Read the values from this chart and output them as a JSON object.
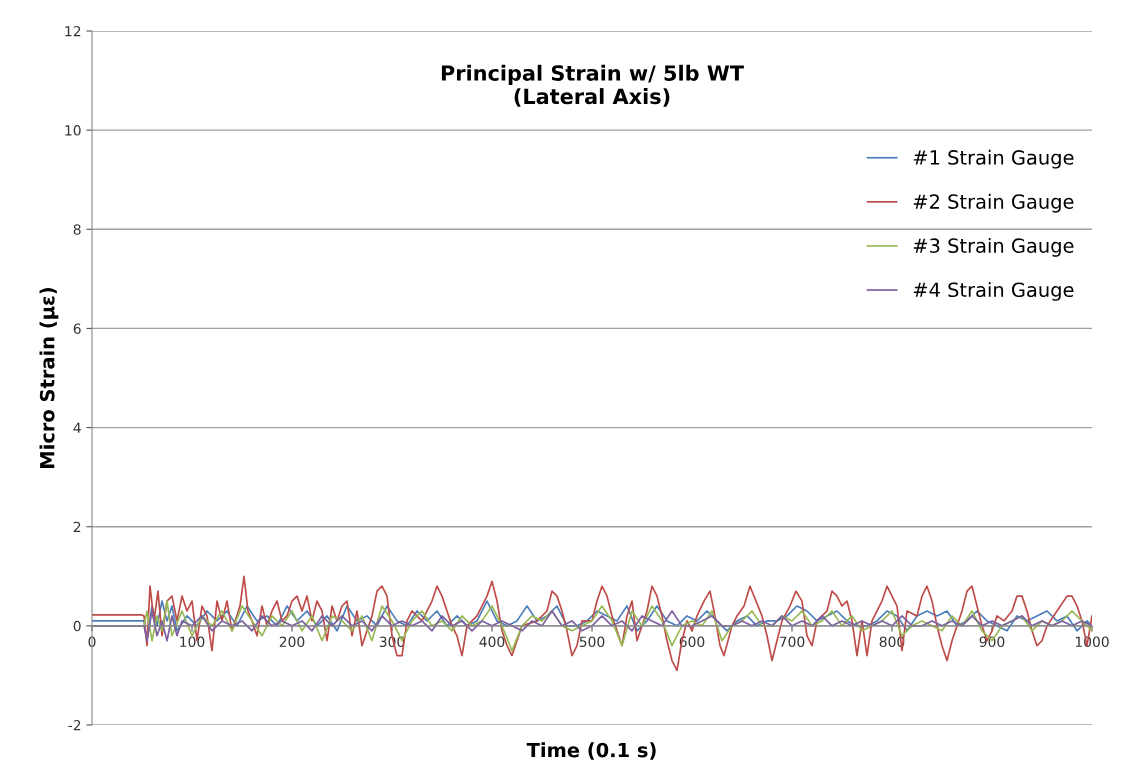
{
  "chart_data": {
    "type": "line",
    "title": "Principal Strain w/ 5lb WT\n(Lateral Axis)",
    "xlabel": "Time (0.1 s)",
    "ylabel": "Micro Strain (με)",
    "xlim": [
      0,
      1000
    ],
    "xticks": [
      0,
      100,
      200,
      300,
      400,
      500,
      600,
      700,
      800,
      900,
      1000
    ],
    "ylim": [
      -2,
      12
    ],
    "yticks": [
      -2,
      0,
      2,
      4,
      6,
      8,
      10,
      12
    ],
    "grid": "y",
    "legend": "right",
    "marker": "none",
    "line_style": "solid",
    "series": [
      {
        "name": "#1 Strain Gauge",
        "color": "#4a7ebb",
        "x": [
          0,
          52,
          55,
          60,
          65,
          70,
          75,
          80,
          85,
          95,
          105,
          115,
          125,
          135,
          145,
          155,
          165,
          175,
          185,
          195,
          205,
          215,
          225,
          235,
          245,
          255,
          265,
          275,
          285,
          295,
          305,
          315,
          325,
          335,
          345,
          355,
          365,
          375,
          385,
          395,
          405,
          415,
          425,
          435,
          445,
          455,
          465,
          475,
          485,
          495,
          505,
          515,
          525,
          535,
          545,
          555,
          565,
          575,
          585,
          595,
          605,
          615,
          625,
          635,
          645,
          655,
          665,
          675,
          685,
          695,
          705,
          715,
          725,
          735,
          745,
          755,
          765,
          775,
          785,
          795,
          805,
          815,
          825,
          835,
          845,
          855,
          865,
          875,
          885,
          895,
          905,
          915,
          925,
          935,
          945,
          955,
          965,
          975,
          985,
          995,
          1000
        ],
        "values": [
          0.1,
          0.1,
          -0.3,
          0.4,
          0.0,
          0.5,
          0.1,
          0.4,
          -0.1,
          0.2,
          0.0,
          0.3,
          0.1,
          0.3,
          0.0,
          0.4,
          0.1,
          0.2,
          0.0,
          0.4,
          0.1,
          0.3,
          0.0,
          0.2,
          -0.1,
          0.4,
          0.1,
          0.2,
          0.0,
          0.4,
          0.1,
          0.0,
          0.3,
          0.1,
          0.3,
          0.0,
          0.2,
          0.0,
          0.1,
          0.5,
          0.1,
          0.0,
          0.1,
          0.4,
          0.1,
          0.2,
          0.4,
          0.0,
          0.0,
          0.1,
          0.3,
          0.2,
          0.1,
          0.4,
          -0.1,
          0.1,
          0.4,
          0.1,
          0.0,
          0.2,
          0.1,
          0.3,
          0.1,
          -0.1,
          0.1,
          0.2,
          0.0,
          0.1,
          0.1,
          0.2,
          0.4,
          0.3,
          0.1,
          0.2,
          0.3,
          0.1,
          0.0,
          0.0,
          0.1,
          0.3,
          0.2,
          -0.1,
          0.2,
          0.3,
          0.2,
          0.3,
          0.0,
          0.1,
          0.3,
          0.1,
          0.0,
          -0.1,
          0.2,
          0.1,
          0.2,
          0.3,
          0.1,
          0.2,
          -0.1,
          0.1,
          0.0
        ]
      },
      {
        "name": "#2 Strain Gauge",
        "color": "#be4b48",
        "x": [
          0,
          50,
          52,
          55,
          58,
          62,
          66,
          70,
          75,
          80,
          85,
          90,
          95,
          100,
          105,
          110,
          115,
          120,
          125,
          130,
          135,
          140,
          148,
          152,
          156,
          160,
          165,
          170,
          175,
          180,
          185,
          190,
          195,
          200,
          205,
          210,
          215,
          220,
          225,
          230,
          235,
          240,
          245,
          250,
          255,
          260,
          265,
          270,
          275,
          280,
          285,
          290,
          295,
          300,
          305,
          310,
          315,
          320,
          330,
          340,
          345,
          350,
          355,
          360,
          365,
          370,
          375,
          385,
          395,
          400,
          405,
          410,
          415,
          420,
          425,
          430,
          445,
          455,
          460,
          465,
          470,
          475,
          480,
          485,
          490,
          500,
          505,
          510,
          515,
          520,
          525,
          530,
          535,
          540,
          545,
          550,
          555,
          560,
          565,
          570,
          575,
          580,
          585,
          590,
          595,
          600,
          605,
          612,
          618,
          622,
          628,
          632,
          640,
          645,
          652,
          658,
          664,
          670,
          675,
          680,
          685,
          690,
          698,
          704,
          710,
          715,
          720,
          725,
          735,
          740,
          745,
          750,
          755,
          760,
          765,
          770,
          775,
          780,
          790,
          795,
          800,
          805,
          810,
          815,
          825,
          830,
          835,
          840,
          845,
          850,
          855,
          860,
          870,
          875,
          880,
          885,
          890,
          895,
          900,
          905,
          912,
          920,
          925,
          930,
          935,
          940,
          945,
          950,
          955,
          965,
          975,
          980,
          985,
          990,
          995,
          1000
        ],
        "values": [
          0.22,
          0.22,
          0.2,
          -0.4,
          0.8,
          0.1,
          0.7,
          -0.2,
          0.5,
          0.6,
          0.1,
          0.6,
          0.3,
          0.5,
          -0.3,
          0.4,
          0.2,
          -0.5,
          0.5,
          0.1,
          0.5,
          -0.1,
          0.4,
          1.0,
          0.3,
          0.1,
          -0.2,
          0.4,
          0.0,
          0.3,
          0.5,
          0.1,
          0.2,
          0.5,
          0.6,
          0.3,
          0.6,
          0.1,
          0.5,
          0.3,
          -0.3,
          0.4,
          0.1,
          0.4,
          0.5,
          -0.2,
          0.3,
          -0.4,
          -0.1,
          0.2,
          0.7,
          0.8,
          0.6,
          -0.2,
          -0.6,
          -0.6,
          0.1,
          0.3,
          0.1,
          0.5,
          0.8,
          0.6,
          0.3,
          0.0,
          -0.2,
          -0.6,
          0.0,
          0.2,
          0.6,
          0.9,
          0.5,
          -0.1,
          -0.4,
          -0.6,
          -0.3,
          0.0,
          0.1,
          0.3,
          0.7,
          0.6,
          0.3,
          -0.1,
          -0.6,
          -0.4,
          0.1,
          0.1,
          0.5,
          0.8,
          0.6,
          0.2,
          -0.1,
          -0.4,
          0.2,
          0.5,
          -0.3,
          0.0,
          0.3,
          0.8,
          0.6,
          0.2,
          -0.3,
          -0.7,
          -0.9,
          -0.3,
          0.1,
          -0.1,
          0.2,
          0.5,
          0.7,
          0.3,
          -0.4,
          -0.6,
          0.0,
          0.2,
          0.4,
          0.8,
          0.5,
          0.2,
          -0.2,
          -0.7,
          -0.3,
          0.1,
          0.4,
          0.7,
          0.5,
          -0.2,
          -0.4,
          0.1,
          0.3,
          0.7,
          0.6,
          0.4,
          0.5,
          0.1,
          -0.6,
          0.1,
          -0.6,
          0.1,
          0.5,
          0.8,
          0.6,
          0.4,
          -0.5,
          0.3,
          0.2,
          0.6,
          0.8,
          0.5,
          0.0,
          -0.4,
          -0.7,
          -0.3,
          0.3,
          0.7,
          0.8,
          0.4,
          0.0,
          -0.3,
          -0.1,
          0.2,
          0.1,
          0.3,
          0.6,
          0.6,
          0.3,
          -0.1,
          -0.4,
          -0.3,
          0.0,
          0.3,
          0.6,
          0.6,
          0.4,
          0.1,
          -0.4,
          0.2
        ]
      },
      {
        "name": "#3 Strain Gauge",
        "color": "#98b954",
        "x": [
          0,
          52,
          55,
          60,
          65,
          70,
          75,
          80,
          90,
          100,
          110,
          120,
          130,
          140,
          150,
          160,
          170,
          180,
          190,
          200,
          210,
          220,
          230,
          240,
          250,
          260,
          270,
          280,
          290,
          300,
          310,
          320,
          330,
          340,
          350,
          360,
          370,
          380,
          390,
          400,
          410,
          420,
          430,
          440,
          450,
          460,
          470,
          480,
          490,
          500,
          510,
          520,
          530,
          540,
          550,
          560,
          570,
          580,
          590,
          600,
          610,
          620,
          630,
          640,
          650,
          660,
          670,
          680,
          690,
          700,
          710,
          720,
          730,
          740,
          750,
          760,
          770,
          780,
          790,
          800,
          810,
          820,
          830,
          840,
          850,
          860,
          870,
          880,
          890,
          900,
          910,
          920,
          930,
          940,
          950,
          960,
          970,
          980,
          990,
          1000
        ],
        "values": [
          0.0,
          0.0,
          0.3,
          -0.3,
          0.2,
          -0.1,
          0.5,
          -0.2,
          0.3,
          -0.2,
          0.2,
          0.0,
          0.3,
          -0.1,
          0.4,
          0.1,
          -0.2,
          0.2,
          0.0,
          0.3,
          -0.1,
          0.2,
          -0.3,
          0.2,
          0.1,
          -0.1,
          0.2,
          -0.3,
          0.4,
          0.1,
          -0.3,
          0.1,
          0.3,
          0.0,
          0.1,
          -0.1,
          0.2,
          0.0,
          0.1,
          0.4,
          0.0,
          -0.5,
          0.0,
          0.2,
          0.1,
          0.3,
          0.0,
          -0.1,
          0.0,
          0.1,
          0.4,
          0.1,
          -0.4,
          0.3,
          0.0,
          0.4,
          0.1,
          -0.4,
          0.0,
          0.1,
          0.0,
          0.3,
          -0.3,
          0.0,
          0.1,
          0.3,
          0.0,
          0.0,
          0.2,
          0.1,
          0.3,
          0.0,
          0.1,
          0.3,
          0.0,
          0.2,
          -0.1,
          0.0,
          0.1,
          0.3,
          -0.2,
          0.0,
          0.1,
          0.0,
          -0.1,
          0.2,
          0.0,
          0.3,
          -0.1,
          -0.3,
          0.0,
          0.1,
          0.2,
          -0.1,
          0.1,
          0.0,
          0.1,
          0.3,
          0.1,
          -0.1
        ]
      },
      {
        "name": "#4 Strain Gauge",
        "color": "#7d60a0",
        "x": [
          0,
          52,
          55,
          60,
          65,
          70,
          75,
          80,
          85,
          90,
          100,
          110,
          120,
          130,
          140,
          150,
          160,
          170,
          180,
          190,
          200,
          210,
          220,
          230,
          240,
          250,
          260,
          270,
          280,
          290,
          300,
          310,
          320,
          330,
          340,
          350,
          360,
          370,
          380,
          390,
          400,
          410,
          420,
          430,
          440,
          450,
          460,
          470,
          480,
          490,
          500,
          510,
          520,
          530,
          540,
          550,
          560,
          570,
          580,
          590,
          600,
          610,
          620,
          630,
          640,
          650,
          660,
          670,
          680,
          690,
          700,
          710,
          720,
          730,
          740,
          750,
          760,
          770,
          780,
          790,
          800,
          810,
          820,
          830,
          840,
          850,
          860,
          870,
          880,
          890,
          900,
          910,
          920,
          930,
          940,
          950,
          960,
          970,
          980,
          990,
          1000
        ],
        "values": [
          0.0,
          0.0,
          -0.3,
          0.3,
          -0.2,
          0.1,
          -0.3,
          0.2,
          -0.2,
          0.1,
          0.0,
          0.2,
          -0.1,
          0.1,
          0.0,
          0.1,
          -0.1,
          0.2,
          0.0,
          0.1,
          0.0,
          0.1,
          -0.1,
          0.2,
          0.0,
          0.2,
          0.0,
          0.1,
          -0.1,
          0.2,
          0.0,
          0.1,
          0.0,
          0.1,
          -0.1,
          0.2,
          0.0,
          0.1,
          -0.1,
          0.1,
          0.0,
          0.1,
          0.0,
          -0.1,
          0.1,
          0.0,
          0.3,
          0.0,
          0.1,
          -0.1,
          0.0,
          0.2,
          0.0,
          0.1,
          -0.1,
          0.2,
          0.1,
          0.0,
          0.3,
          0.0,
          0.0,
          0.1,
          0.2,
          0.0,
          0.0,
          0.1,
          0.0,
          0.1,
          0.0,
          0.2,
          0.0,
          0.1,
          0.0,
          0.2,
          0.0,
          0.1,
          0.0,
          0.1,
          0.0,
          0.1,
          0.0,
          0.2,
          0.0,
          0.0,
          0.1,
          0.0,
          0.1,
          0.0,
          0.2,
          0.0,
          0.1,
          0.0,
          0.1,
          0.2,
          0.0,
          0.1,
          0.0,
          0.1,
          0.0,
          0.1,
          0.0
        ]
      }
    ]
  }
}
